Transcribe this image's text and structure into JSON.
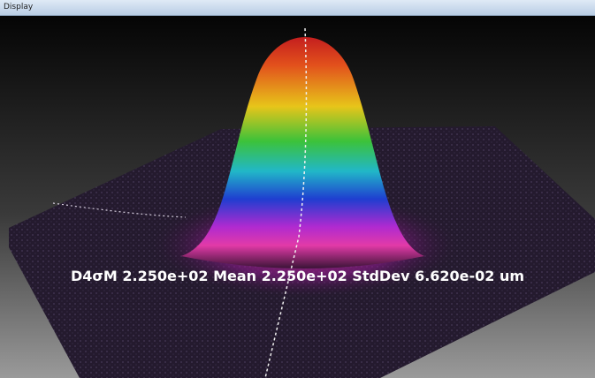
{
  "window": {
    "title": "Display"
  },
  "overlay": {
    "text": "D4σM 2.250e+02 Mean 2.250e+02 StdDev 6.620e-02 um"
  }
}
